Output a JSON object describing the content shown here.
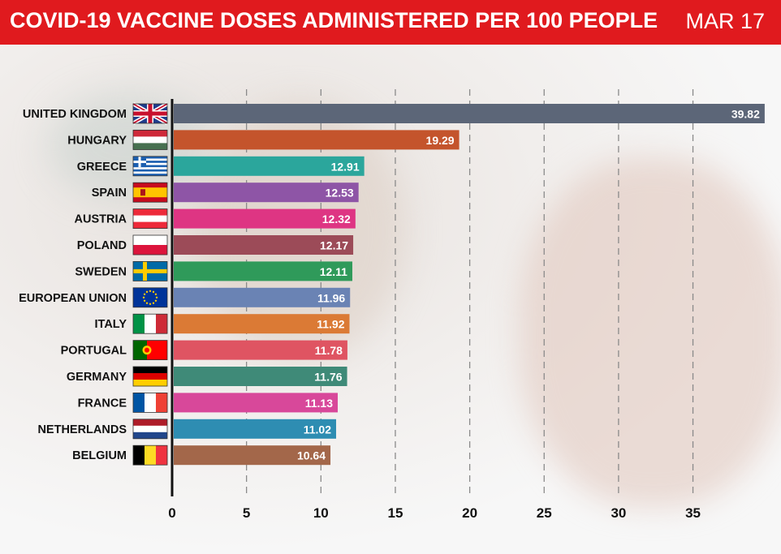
{
  "header": {
    "title": "COVID-19 VACCINE DOSES ADMINISTERED PER 100 PEOPLE",
    "date": "MAR 17",
    "color": "#e01a1e"
  },
  "chart_data": {
    "type": "bar",
    "orientation": "horizontal",
    "title": "COVID-19 VACCINE DOSES ADMINISTERED PER 100 PEOPLE",
    "xlabel": "",
    "ylabel": "",
    "xlim": [
      0,
      40
    ],
    "x_ticks": [
      0,
      5,
      10,
      15,
      20,
      25,
      30,
      35
    ],
    "grid": "vertical dashed",
    "categories": [
      "UNITED KINGDOM",
      "HUNGARY",
      "GREECE",
      "SPAIN",
      "AUSTRIA",
      "POLAND",
      "SWEDEN",
      "EUROPEAN UNION",
      "ITALY",
      "PORTUGAL",
      "GERMANY",
      "FRANCE",
      "NETHERLANDS",
      "BELGIUM"
    ],
    "values": [
      39.82,
      19.29,
      12.91,
      12.53,
      12.32,
      12.17,
      12.11,
      11.96,
      11.92,
      11.78,
      11.76,
      11.13,
      11.02,
      10.64
    ],
    "value_labels": [
      "39.82",
      "19.29",
      "12.91",
      "12.53",
      "12.32",
      "12.17",
      "12.11",
      "11.96",
      "11.92",
      "11.78",
      "11.76",
      "11.13",
      "11.02",
      "10.64"
    ],
    "colors": [
      "#5c6678",
      "#c4542c",
      "#2ba69c",
      "#8e55a6",
      "#de3583",
      "#9c4b58",
      "#2f9a5a",
      "#6a83b4",
      "#db7a35",
      "#df5462",
      "#3f8a78",
      "#d8489a",
      "#2e8db2",
      "#a3674a"
    ],
    "flags": [
      "uk-flag-icon",
      "hungary-flag-icon",
      "greece-flag-icon",
      "spain-flag-icon",
      "austria-flag-icon",
      "poland-flag-icon",
      "sweden-flag-icon",
      "eu-flag-icon",
      "italy-flag-icon",
      "portugal-flag-icon",
      "germany-flag-icon",
      "france-flag-icon",
      "netherlands-flag-icon",
      "belgium-flag-icon"
    ]
  }
}
